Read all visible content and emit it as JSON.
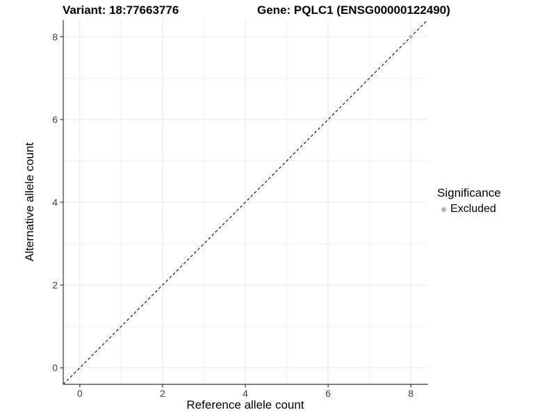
{
  "chart_data": {
    "type": "scatter",
    "title_left": "Variant: 18:77663776",
    "title_right": "Gene: PQLC1 (ENSG00000122490)",
    "xlabel": "Reference allele count",
    "ylabel": "Alternative allele count",
    "xlim": [
      -0.4,
      8.4
    ],
    "ylim": [
      -0.4,
      8.4
    ],
    "x_ticks": [
      0,
      2,
      4,
      6,
      8
    ],
    "y_ticks": [
      0,
      2,
      4,
      6,
      8
    ],
    "x_minor_ticks": [
      1,
      3,
      5,
      7
    ],
    "y_minor_ticks": [
      1,
      3,
      5,
      7
    ],
    "grid": true,
    "legend_position": "right",
    "reference_line": {
      "kind": "abline",
      "slope": 1,
      "intercept": 0,
      "style": "dashed",
      "color": "#000000"
    },
    "series": [
      {
        "name": "Excluded",
        "color": "#b5b5b5",
        "points": [
          {
            "x": 8,
            "y": 8
          }
        ]
      }
    ],
    "legend": {
      "title": "Significance",
      "items": [
        {
          "label": "Excluded",
          "color": "#b5b5b5"
        }
      ]
    },
    "colors": {
      "background": "#ffffff",
      "grid_major": "#e7e7e7",
      "grid_minor": "#f1f1f1",
      "axis_line": "#333333",
      "tick_text": "#404040",
      "point": "#b5b5b5"
    }
  }
}
